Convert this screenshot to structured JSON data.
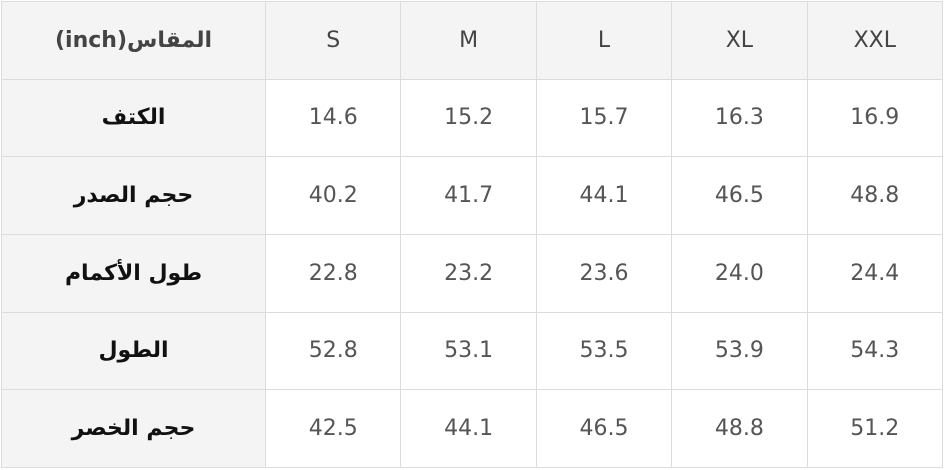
{
  "table": {
    "header": [
      "المقاس(inch)",
      "S",
      "M",
      "L",
      "XL",
      "XXL"
    ],
    "rows": [
      [
        "الكتف",
        "14.6",
        "15.2",
        "15.7",
        "16.3",
        "16.9"
      ],
      [
        "حجم الصدر",
        "40.2",
        "41.7",
        "44.1",
        "46.5",
        "48.8"
      ],
      [
        "طول الأكمام",
        "22.8",
        "23.2",
        "23.6",
        "24.0",
        "24.4"
      ],
      [
        "الطول",
        "52.8",
        "53.1",
        "53.5",
        "53.9",
        "54.3"
      ],
      [
        "حجم الخصر",
        "42.5",
        "44.1",
        "46.5",
        "48.8",
        "51.2"
      ]
    ]
  }
}
